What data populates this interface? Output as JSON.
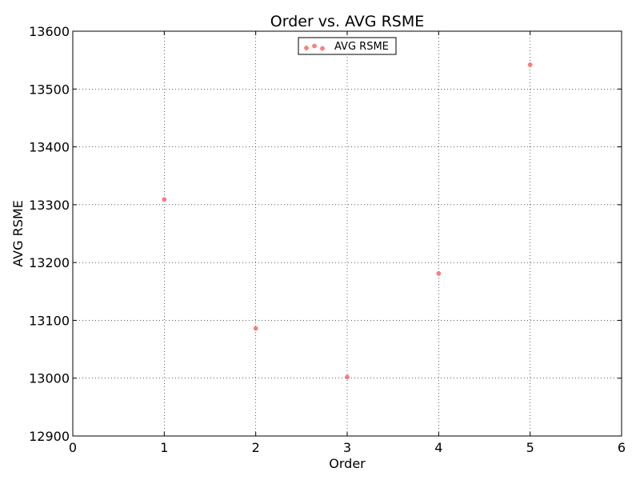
{
  "chart_data": {
    "type": "scatter",
    "title": "Order vs. AVG RSME",
    "xlabel": "Order",
    "ylabel": "AVG RSME",
    "xlim": [
      0,
      6
    ],
    "ylim": [
      12900,
      13600
    ],
    "xticks": [
      0,
      1,
      2,
      3,
      4,
      5,
      6
    ],
    "yticks": [
      12900,
      13000,
      13100,
      13200,
      13300,
      13400,
      13500,
      13600
    ],
    "grid": true,
    "legend": {
      "placement": "upper-center",
      "entries": [
        "AVG RSME"
      ]
    },
    "series": [
      {
        "name": "AVG RSME",
        "color": "#ff6666",
        "x": [
          1,
          2,
          3,
          4,
          5
        ],
        "y": [
          13309,
          13086,
          13002,
          13181,
          13542
        ]
      }
    ]
  }
}
